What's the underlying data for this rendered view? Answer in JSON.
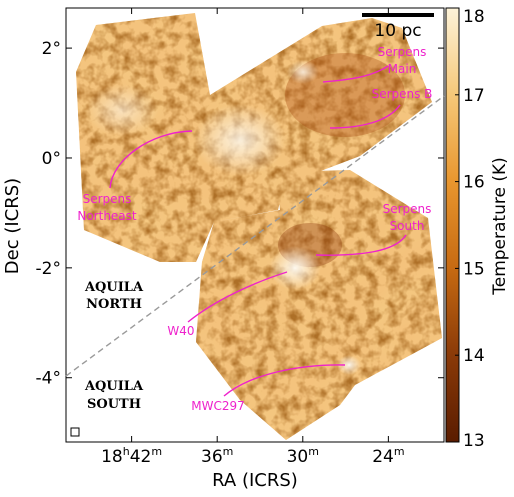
{
  "chart_data": {
    "type": "heatmap",
    "title": "",
    "xlabel": "RA (ICRS)",
    "ylabel": "Dec (ICRS)",
    "x_ticks": [
      {
        "ra_min": 1122,
        "h": "18",
        "m": "42"
      },
      {
        "ra_min": 1116,
        "h": "",
        "m": "36"
      },
      {
        "ra_min": 1110,
        "h": "",
        "m": "30"
      },
      {
        "ra_min": 1104,
        "h": "",
        "m": "24"
      }
    ],
    "y_ticks": [
      {
        "dec": 2,
        "label": "2°"
      },
      {
        "dec": 0,
        "label": "0°"
      },
      {
        "dec": -2,
        "label": "-2°"
      },
      {
        "dec": -4,
        "label": "-4°"
      }
    ],
    "xlim": [
      1126.6,
      1100.1
    ],
    "ylim": [
      -5.17,
      2.73
    ],
    "colorbar": {
      "label": "Temperature (K)",
      "range": [
        13,
        18
      ],
      "ticks": [
        13,
        14,
        15,
        16,
        17,
        18
      ],
      "colormap": [
        "#5a1c00",
        "#8a3a08",
        "#c66a12",
        "#e8962e",
        "#f6c879",
        "#fdf3d9"
      ]
    },
    "scalebar": {
      "label": "10 pc"
    },
    "regions": [
      {
        "label": "Serpens Main",
        "ra_min": 1108.2,
        "dec": 1.25
      },
      {
        "label": "Serpens B",
        "ra_min": 1108.4,
        "dec": 0.55
      },
      {
        "label": "Serpens Northeast",
        "ra_min": 1116.3,
        "dec": 0.35
      },
      {
        "label": "Serpens South",
        "ra_min": 1108.7,
        "dec": -1.85
      },
      {
        "label": "W40",
        "ra_min": 1111.5,
        "dec": -2.1
      },
      {
        "label": "MWC297",
        "ra_min": 1108.0,
        "dec": -3.85
      }
    ],
    "zones": [
      {
        "label": "AQUILA NORTH"
      },
      {
        "label": "AQUILA SOUTH"
      }
    ],
    "divider": {
      "style": "dashed",
      "color": "#9a9a9a"
    },
    "annotation_color": "#ee22cc"
  }
}
